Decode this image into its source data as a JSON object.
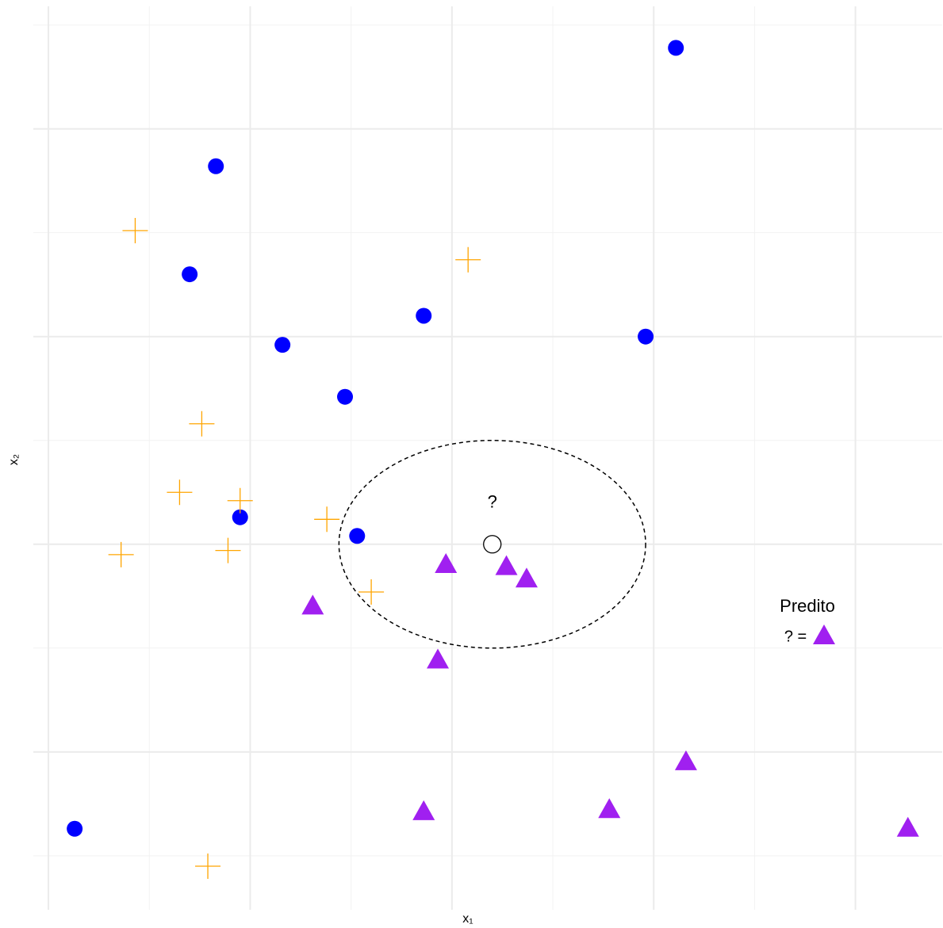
{
  "chart_data": {
    "type": "scatter",
    "x_label": "x₁",
    "y_label": "x₂",
    "xlim": [
      -0.075,
      4.43
    ],
    "ylim": [
      -0.76,
      3.59
    ],
    "xticks": [
      0,
      1,
      2,
      3,
      4
    ],
    "xticks_minor": [
      0.5,
      1.5,
      2.5,
      3.5
    ],
    "yticks": [
      0,
      1,
      2,
      3
    ],
    "yticks_minor": [
      -0.5,
      0.5,
      1.5,
      2.5,
      3.5
    ],
    "grid": true,
    "series": [
      {
        "marker": "circle",
        "color": "#0000ff",
        "x": [
          3.11,
          0.83,
          0.7,
          1.86,
          1.16,
          2.96,
          1.47,
          0.95,
          1.53,
          0.13
        ],
        "values": [
          3.39,
          2.82,
          2.3,
          2.1,
          1.96,
          2.0,
          1.71,
          1.13,
          1.04,
          -0.37
        ]
      },
      {
        "marker": "plus",
        "color": "#ffa500",
        "x": [
          0.43,
          2.08,
          0.76,
          0.65,
          0.95,
          1.38,
          0.36,
          0.89,
          1.6,
          0.79
        ],
        "values": [
          2.51,
          2.37,
          1.58,
          1.25,
          1.21,
          1.12,
          0.95,
          0.97,
          0.77,
          -0.55
        ]
      },
      {
        "marker": "triangle",
        "color": "#a020f0",
        "x": [
          1.97,
          2.27,
          2.37,
          1.31,
          1.93,
          3.16,
          1.86,
          2.78,
          4.26
        ],
        "values": [
          0.9,
          0.89,
          0.83,
          0.7,
          0.44,
          -0.05,
          -0.29,
          -0.28,
          -0.37
        ]
      }
    ],
    "query": {
      "x": 2.2,
      "y": 1.0,
      "label": "?"
    },
    "neighborhood": {
      "cx": 2.2,
      "cy": 1.0,
      "rx": 0.76,
      "ry": 0.5
    },
    "legend": {
      "title": "Predito",
      "text": "? =",
      "marker": "triangle",
      "color": "#a020f0"
    }
  }
}
